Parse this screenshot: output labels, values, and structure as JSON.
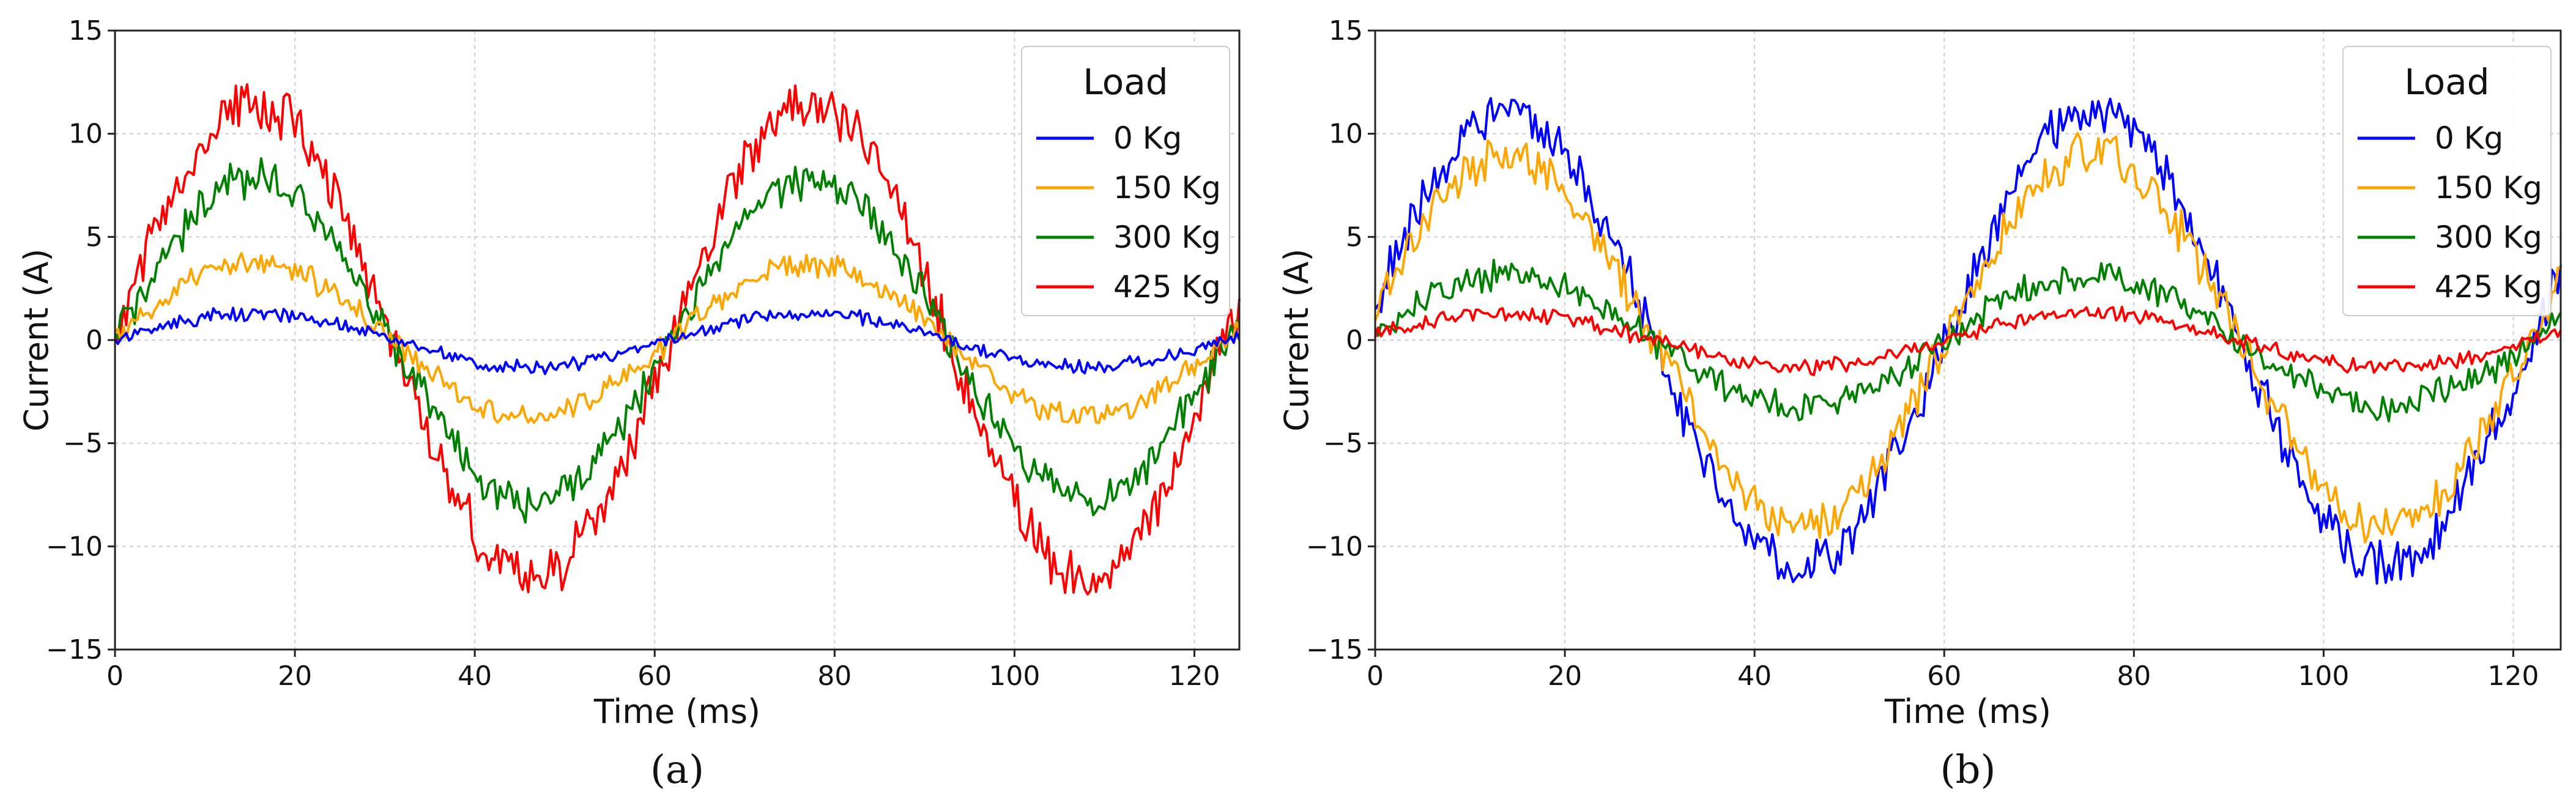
{
  "chart_data": [
    {
      "type": "line",
      "panel_label": "(a)",
      "xlabel": "Time (ms)",
      "ylabel": "Current (A)",
      "xlim": [
        0,
        125
      ],
      "ylim": [
        -15,
        15
      ],
      "xticks": [
        0,
        20,
        40,
        60,
        80,
        100,
        120
      ],
      "yticks": [
        -15,
        -10,
        -5,
        0,
        5,
        10,
        15
      ],
      "ytick_labels": [
        "−15",
        "−10",
        "−5",
        "0",
        "5",
        "10",
        "15"
      ],
      "grid": true,
      "legend": {
        "title": "Load",
        "position": "top-right"
      },
      "signal": {
        "frequency_hz": 16.2,
        "phase_shift_ms": 0,
        "noise_seed": 11
      },
      "series": [
        {
          "name": "0 Kg",
          "color": "#0000ff",
          "amplitude": 1.3,
          "noise": 0.25
        },
        {
          "name": "150 Kg",
          "color": "#ffa500",
          "amplitude": 3.7,
          "noise": 0.45
        },
        {
          "name": "300 Kg",
          "color": "#008000",
          "amplitude": 7.8,
          "noise": 0.75
        },
        {
          "name": "425 Kg",
          "color": "#ff0000",
          "amplitude": 11.5,
          "noise": 1.0
        }
      ]
    },
    {
      "type": "line",
      "panel_label": "(b)",
      "xlabel": "Time (ms)",
      "ylabel": "Current (A)",
      "xlim": [
        0,
        125
      ],
      "ylim": [
        -15,
        15
      ],
      "xticks": [
        0,
        20,
        40,
        60,
        80,
        100,
        120
      ],
      "yticks": [
        -15,
        -10,
        -5,
        0,
        5,
        10,
        15
      ],
      "ytick_labels": [
        "−15",
        "−10",
        "−5",
        "0",
        "5",
        "10",
        "15"
      ],
      "grid": true,
      "legend": {
        "title": "Load",
        "position": "top-right"
      },
      "signal": {
        "frequency_hz": 16.2,
        "phase_shift_ms": -1.5,
        "noise_seed": 29
      },
      "series": [
        {
          "name": "0 Kg",
          "color": "#0000ff",
          "amplitude": 11.0,
          "noise": 1.0
        },
        {
          "name": "150 Kg",
          "color": "#ffa500",
          "amplitude": 9.0,
          "noise": 0.8
        },
        {
          "name": "300 Kg",
          "color": "#008000",
          "amplitude": 3.2,
          "noise": 0.6
        },
        {
          "name": "425 Kg",
          "color": "#ff0000",
          "amplitude": 1.3,
          "noise": 0.3
        }
      ]
    }
  ]
}
